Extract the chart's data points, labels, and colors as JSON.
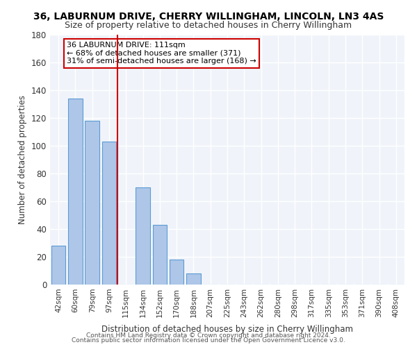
{
  "title1": "36, LABURNUM DRIVE, CHERRY WILLINGHAM, LINCOLN, LN3 4AS",
  "title2": "Size of property relative to detached houses in Cherry Willingham",
  "xlabel": "Distribution of detached houses by size in Cherry Willingham",
  "ylabel": "Number of detached properties",
  "footnote1": "Contains HM Land Registry data © Crown copyright and database right 2024.",
  "footnote2": "Contains public sector information licensed under the Open Government Licence v3.0.",
  "bar_labels": [
    "42sqm",
    "60sqm",
    "79sqm",
    "97sqm",
    "115sqm",
    "134sqm",
    "152sqm",
    "170sqm",
    "188sqm",
    "207sqm",
    "225sqm",
    "243sqm",
    "262sqm",
    "280sqm",
    "298sqm",
    "317sqm",
    "335sqm",
    "353sqm",
    "371sqm",
    "390sqm",
    "408sqm"
  ],
  "bar_values": [
    28,
    134,
    118,
    103,
    0,
    70,
    43,
    18,
    8,
    0,
    0,
    0,
    0,
    0,
    0,
    0,
    0,
    0,
    0,
    0,
    0
  ],
  "bar_color": "#aec6e8",
  "bar_edge_color": "#5b9bd5",
  "reference_line_x": 4,
  "reference_line_label": "36 LABURNUM DRIVE: 111sqm",
  "annotation_line1": "← 68% of detached houses are smaller (371)",
  "annotation_line2": "31% of semi-detached houses are larger (168) →",
  "annotation_box_color": "#cc0000",
  "ylim": [
    0,
    180
  ],
  "yticks": [
    0,
    20,
    40,
    60,
    80,
    100,
    120,
    140,
    160,
    180
  ],
  "bg_color": "#f0f4fa",
  "grid_color": "#ffffff",
  "property_sqm": 111
}
